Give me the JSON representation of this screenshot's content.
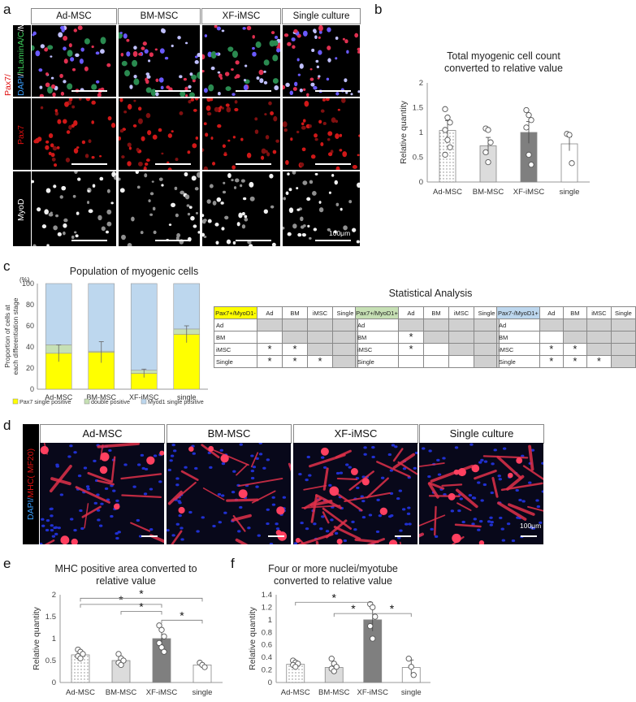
{
  "panels": {
    "a": "a",
    "b": "b",
    "c": "c",
    "d": "d",
    "e": "e",
    "f": "f"
  },
  "panel_a": {
    "columns": [
      "Ad-MSC",
      "BM-MSC",
      "XF-iMSC",
      "Single culture"
    ],
    "row_labels": {
      "merge_dapi": "DAPI",
      "merge_sep1": "/",
      "merge_lamin": "hLaminA/C",
      "merge_sep2": "/",
      "merge_myod": "MyoD",
      "merge_pax7": "Pax7/",
      "pax7": "Pax7",
      "myod": "MyoD"
    },
    "scale_text": "100μm"
  },
  "panel_d": {
    "columns": [
      "Ad-MSC",
      "BM-MSC",
      "XF-iMSC",
      "Single culture"
    ],
    "row_label": {
      "dapi": "DAPI/",
      "mhc": "MHC( MF20)"
    },
    "scale_text": "100μm"
  },
  "panel_c_stats": {
    "title": "Statistical Analysis",
    "tables": [
      {
        "header": "Pax7+/MyoD1-",
        "header_color": "#ffff00",
        "cols": [
          "Ad",
          "BM",
          "iMSC",
          "Single"
        ],
        "rows": [
          "Ad",
          "BM",
          "iMSC",
          "Single"
        ],
        "cells": [
          [
            "",
            "",
            "",
            ""
          ],
          [
            "",
            "",
            "",
            ""
          ],
          [
            "*",
            "*",
            "",
            ""
          ],
          [
            "*",
            "*",
            "*",
            ""
          ]
        ]
      },
      {
        "header": "Pax7+/MyoD1+",
        "header_color": "#c6e0b4",
        "cols": [
          "Ad",
          "BM",
          "iMSC",
          "Single"
        ],
        "rows": [
          "Ad",
          "BM",
          "iMSC",
          "Single"
        ],
        "cells": [
          [
            "",
            "",
            "",
            ""
          ],
          [
            "*",
            "",
            "",
            ""
          ],
          [
            "*",
            "",
            "",
            ""
          ],
          [
            "",
            "",
            "",
            ""
          ]
        ]
      },
      {
        "header": "Pax7-/MyoD1+",
        "header_color": "#bdd7ee",
        "cols": [
          "Ad",
          "BM",
          "iMSC",
          "Single"
        ],
        "rows": [
          "Ad",
          "BM",
          "iMSC",
          "Single"
        ],
        "cells": [
          [
            "",
            "",
            "",
            ""
          ],
          [
            "",
            "",
            "",
            ""
          ],
          [
            "*",
            "*",
            "",
            ""
          ],
          [
            "*",
            "*",
            "*",
            ""
          ]
        ]
      }
    ]
  },
  "chart_data": [
    {
      "id": "b",
      "type": "bar",
      "title": "Total myogenic cell count converted to relative value",
      "title_lines": [
        "Total myogenic cell count",
        "converted to relative value"
      ],
      "ylabel": "Relative quantity",
      "ylim": [
        0,
        2
      ],
      "yticks": [
        0,
        0.5,
        1,
        1.5,
        2
      ],
      "categories": [
        "Ad-MSC",
        "BM-MSC",
        "XF-iMSC",
        "single"
      ],
      "values": [
        1.04,
        0.73,
        1.0,
        0.77
      ],
      "errors": [
        0.2,
        0.17,
        0.22,
        0.14
      ],
      "points": [
        [
          1.47,
          1.3,
          1.2,
          1.05,
          0.85,
          0.7,
          0.55
        ],
        [
          1.08,
          1.05,
          0.8,
          0.6,
          0.4
        ],
        [
          1.45,
          1.35,
          1.25,
          1.1,
          0.55,
          0.35
        ],
        [
          0.97,
          0.95,
          0.38
        ]
      ],
      "fills": [
        "dotted",
        "#dcdcdc",
        "#7f7f7f",
        "#ffffff"
      ]
    },
    {
      "id": "c",
      "type": "bar",
      "stacked": true,
      "title": "Population of myogenic cells",
      "ylabel": "Proportion of cells at each differentiation stage",
      "yunit": "(%)",
      "ylim": [
        0,
        100
      ],
      "yticks": [
        0,
        20,
        40,
        60,
        80,
        100
      ],
      "categories": [
        "Ad-MSC",
        "BM-MSC",
        "XF-iMSC",
        "single"
      ],
      "series": [
        {
          "name": "Pax7 single positive",
          "values": [
            34,
            35,
            15,
            52
          ],
          "color": "#ffff00"
        },
        {
          "name": "double positive",
          "values": [
            8,
            1,
            3,
            5
          ],
          "color": "#c6e0b4"
        },
        {
          "name": "Myod1 single positive",
          "values": [
            58,
            64,
            82,
            43
          ],
          "color": "#bdd7ee"
        }
      ],
      "errors": [
        8,
        10,
        4,
        8
      ]
    },
    {
      "id": "e",
      "type": "bar",
      "title": "MHC positive area converted to relative value",
      "title_lines": [
        "MHC positive area converted to",
        "relative value"
      ],
      "ylabel": "Relative quantity",
      "ylim": [
        0,
        2
      ],
      "yticks": [
        0,
        0.5,
        1,
        1.5,
        2
      ],
      "categories": [
        "Ad-MSC",
        "BM-MSC",
        "XF-iMSC",
        "single"
      ],
      "values": [
        0.63,
        0.5,
        1.0,
        0.4
      ],
      "errors": [
        0.1,
        0.08,
        0.18,
        0.04
      ],
      "points": [
        [
          0.75,
          0.7,
          0.65,
          0.6,
          0.55
        ],
        [
          0.65,
          0.55,
          0.5,
          0.45,
          0.4
        ],
        [
          1.3,
          1.2,
          1.05,
          0.9,
          0.8,
          0.7
        ],
        [
          0.45,
          0.4,
          0.35
        ]
      ],
      "fills": [
        "dotted",
        "#dcdcdc",
        "#7f7f7f",
        "#ffffff"
      ],
      "sig_brackets": [
        {
          "from": 0,
          "to": 2,
          "level": 1.78,
          "label": "*"
        },
        {
          "from": 0,
          "to": 3,
          "level": 1.92,
          "label": "*"
        },
        {
          "from": 1,
          "to": 2,
          "level": 1.62,
          "label": "*"
        },
        {
          "from": 2,
          "to": 3,
          "level": 1.42,
          "label": "*"
        }
      ]
    },
    {
      "id": "f",
      "type": "bar",
      "title": "Four or more nuclei/myotube converted to relative value",
      "title_lines": [
        "Four or more nuclei/myotube",
        "converted to relative value"
      ],
      "ylabel": "Relative quantity",
      "ylim": [
        0,
        1.4
      ],
      "yticks": [
        0,
        0.2,
        0.4,
        0.6,
        0.8,
        1,
        1.2,
        1.4
      ],
      "categories": [
        "Ad-MSC",
        "BM-MSC",
        "XF-iMSC",
        "single"
      ],
      "values": [
        0.29,
        0.24,
        1.0,
        0.24
      ],
      "errors": [
        0.05,
        0.07,
        0.18,
        0.12
      ],
      "points": [
        [
          0.35,
          0.32,
          0.3,
          0.28,
          0.25
        ],
        [
          0.38,
          0.3,
          0.25,
          0.22,
          0.18
        ],
        [
          1.25,
          1.2,
          1.05,
          0.9,
          0.7
        ],
        [
          0.38,
          0.25,
          0.12
        ]
      ],
      "fills": [
        "dotted",
        "#dcdcdc",
        "#7f7f7f",
        "#ffffff"
      ],
      "sig_brackets": [
        {
          "from": 0,
          "to": 2,
          "level": 1.28,
          "label": "*"
        },
        {
          "from": 1,
          "to": 2,
          "level": 1.1,
          "label": "*"
        },
        {
          "from": 2,
          "to": 3,
          "level": 1.1,
          "label": "*"
        }
      ]
    }
  ]
}
